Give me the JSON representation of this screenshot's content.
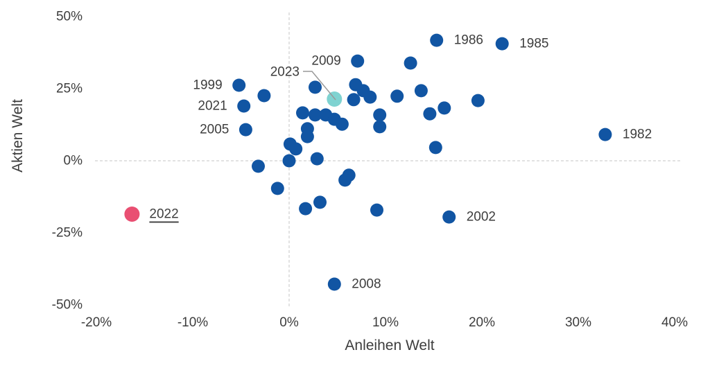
{
  "chart_data": {
    "type": "scatter",
    "title": "",
    "xlabel": "Anleihen Welt",
    "ylabel": "Aktien Welt",
    "xlim": [
      -20,
      40
    ],
    "ylim": [
      -50,
      50
    ],
    "x_ticks": [
      "-20%",
      "-10%",
      "0%",
      "10%",
      "20%",
      "30%",
      "40%"
    ],
    "x_tick_values": [
      -20,
      -10,
      0,
      10,
      20,
      30,
      40
    ],
    "y_ticks": [
      "50%",
      "25%",
      "0%",
      "-25%",
      "-50%"
    ],
    "y_tick_values": [
      50,
      25,
      0,
      -25,
      -50
    ],
    "grid": "dashed-zero-lines-only",
    "legend": "none",
    "colors": {
      "point_default": "#1155a3",
      "point_2022": "#e94f72",
      "point_2023": "#7fd3d1",
      "label_text": "#3d3d3d",
      "gridline": "#c6c6c6",
      "leader_line": "#999999",
      "background": "#ffffff"
    },
    "units": "percent",
    "points": [
      {
        "x": 15.3,
        "y": 41.8,
        "label": "1986",
        "side": "right"
      },
      {
        "x": 22.1,
        "y": 40.6,
        "label": "1985",
        "side": "right"
      },
      {
        "x": 32.8,
        "y": 9.1,
        "label": "1982",
        "side": "right"
      },
      {
        "x": 16.6,
        "y": -19.5,
        "label": "2002",
        "side": "right"
      },
      {
        "x": 4.7,
        "y": -42.8,
        "label": "2008",
        "side": "right"
      },
      {
        "x": -16.3,
        "y": -18.5,
        "label": "2022",
        "side": "right",
        "color": "point_2022",
        "underline": true
      },
      {
        "x": 4.7,
        "y": 21.4,
        "label": "2023",
        "side": "leader",
        "color": "point_2023"
      },
      {
        "x": 7.1,
        "y": 34.6,
        "label": "2009",
        "side": "left"
      },
      {
        "x": -5.2,
        "y": 26.2,
        "label": "1999",
        "side": "left"
      },
      {
        "x": -4.7,
        "y": 19.0,
        "label": "2021",
        "side": "left"
      },
      {
        "x": -4.5,
        "y": 10.8,
        "label": "2005",
        "side": "left"
      },
      {
        "x": -2.6,
        "y": 22.6
      },
      {
        "x": 12.6,
        "y": 33.9
      },
      {
        "x": 2.7,
        "y": 25.5
      },
      {
        "x": 6.9,
        "y": 26.4
      },
      {
        "x": 7.7,
        "y": 24.3
      },
      {
        "x": 8.4,
        "y": 22.1
      },
      {
        "x": 6.7,
        "y": 21.2
      },
      {
        "x": 11.2,
        "y": 22.4
      },
      {
        "x": 13.7,
        "y": 24.3
      },
      {
        "x": 19.6,
        "y": 20.9
      },
      {
        "x": 14.6,
        "y": 16.3
      },
      {
        "x": 16.1,
        "y": 18.3
      },
      {
        "x": 1.4,
        "y": 16.6
      },
      {
        "x": 2.7,
        "y": 15.9
      },
      {
        "x": 3.8,
        "y": 15.9
      },
      {
        "x": 4.7,
        "y": 14.4
      },
      {
        "x": 5.5,
        "y": 12.7
      },
      {
        "x": 9.4,
        "y": 15.9
      },
      {
        "x": 9.4,
        "y": 11.8
      },
      {
        "x": 1.9,
        "y": 11.1
      },
      {
        "x": 1.9,
        "y": 8.4
      },
      {
        "x": 0.1,
        "y": 5.8
      },
      {
        "x": 0.7,
        "y": 4.1
      },
      {
        "x": 0.0,
        "y": 0.0
      },
      {
        "x": 2.9,
        "y": 0.7
      },
      {
        "x": -3.2,
        "y": -1.9
      },
      {
        "x": -1.2,
        "y": -9.6
      },
      {
        "x": 6.2,
        "y": -5.0
      },
      {
        "x": 5.8,
        "y": -6.7
      },
      {
        "x": 1.7,
        "y": -16.6
      },
      {
        "x": 3.2,
        "y": -14.4
      },
      {
        "x": 9.1,
        "y": -17.1
      },
      {
        "x": 15.2,
        "y": 4.6
      }
    ],
    "annotation_2023": {
      "text": "2023",
      "leader": "polyline from label to teal point"
    }
  }
}
